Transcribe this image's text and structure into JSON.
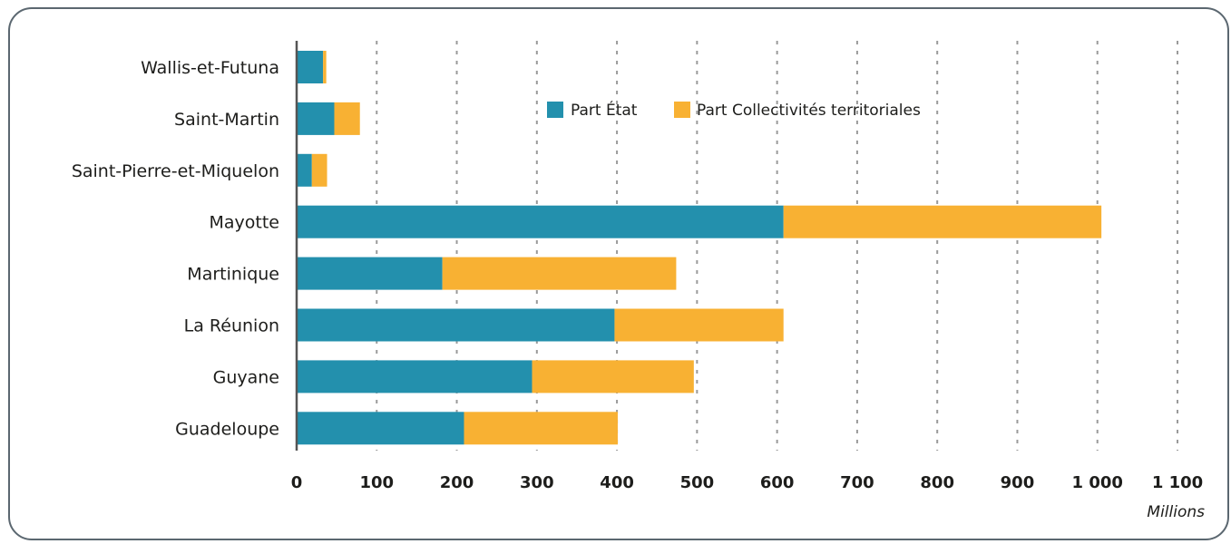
{
  "chart_data": {
    "type": "bar",
    "orientation": "horizontal",
    "stacked": true,
    "categories": [
      "Wallis-et-Futuna",
      "Saint-Martin",
      "Saint-Pierre-et-Miquelon",
      "Mayotte",
      "Martinique",
      "La Réunion",
      "Guyane",
      "Guadeloupe"
    ],
    "series": [
      {
        "name": "Part État",
        "color": "#2390ad",
        "values": [
          33,
          47,
          19,
          608,
          182,
          397,
          294,
          209
        ]
      },
      {
        "name": "Part Collectivités territoriales",
        "color": "#f8b133",
        "values": [
          4,
          32,
          19,
          397,
          292,
          211,
          202,
          192
        ]
      }
    ],
    "xlim": [
      0,
      1100
    ],
    "xticks": [
      0,
      100,
      200,
      300,
      400,
      500,
      600,
      700,
      800,
      900,
      1000,
      1100
    ],
    "xtick_labels": [
      "0",
      "100",
      "200",
      "300",
      "400",
      "500",
      "600",
      "700",
      "800",
      "900",
      "1 000",
      "1 100"
    ],
    "unit_label": "Millions",
    "grid": "vertical dotted",
    "legend_position": "top-center"
  }
}
